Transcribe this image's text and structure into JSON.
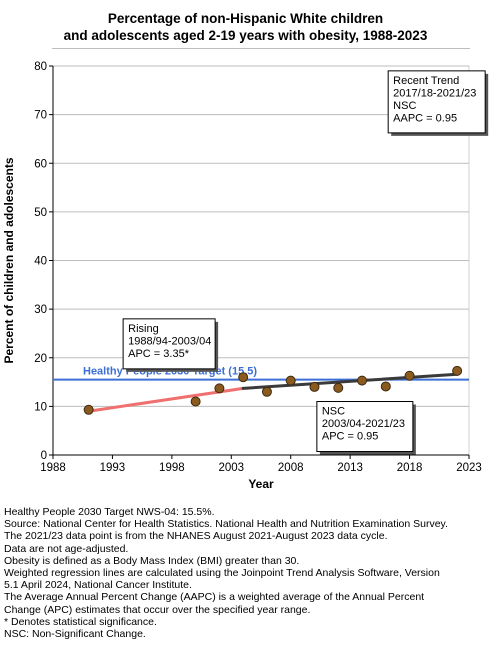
{
  "title_line1": "Percentage of non-Hispanic White children",
  "title_line2": "and adolescents aged 2-19 years with obesity, 1988-2023",
  "chart_data": {
    "type": "scatter",
    "xlabel": "Year",
    "ylabel": "Percent of children and adolescents",
    "xlim": [
      1988,
      2023
    ],
    "ylim": [
      0,
      80
    ],
    "x_ticks": [
      1988,
      1993,
      1998,
      2003,
      2008,
      2013,
      2018,
      2023
    ],
    "y_ticks": [
      0,
      10,
      20,
      30,
      40,
      50,
      60,
      70,
      80
    ],
    "grid": "horizontal",
    "points": [
      {
        "x": 1991,
        "y": 9.3
      },
      {
        "x": 2000,
        "y": 11.0
      },
      {
        "x": 2002,
        "y": 13.7
      },
      {
        "x": 2004,
        "y": 16.0
      },
      {
        "x": 2006,
        "y": 13.0
      },
      {
        "x": 2008,
        "y": 15.3
      },
      {
        "x": 2010,
        "y": 14.0
      },
      {
        "x": 2012,
        "y": 13.8
      },
      {
        "x": 2014,
        "y": 15.3
      },
      {
        "x": 2016,
        "y": 14.1
      },
      {
        "x": 2018,
        "y": 16.3
      },
      {
        "x": 2022,
        "y": 17.3
      }
    ],
    "point_color": "#8B5A1E",
    "trend_segments": [
      {
        "x": [
          1991,
          2004
        ],
        "y": [
          9.0,
          13.7
        ],
        "color": "#f07070"
      },
      {
        "x": [
          2004,
          2022
        ],
        "y": [
          13.7,
          16.6
        ],
        "color": "#3a3a3a"
      }
    ],
    "target": {
      "value": 15.5,
      "label": "Healthy People 2030 Target (15.5)",
      "color": "#3b6fd6"
    },
    "annotations": [
      {
        "lines": [
          "Rising",
          "1988/94-2003/04",
          "APC =  3.35*"
        ]
      },
      {
        "lines": [
          "NSC",
          "2003/04-2021/23",
          "APC =  0.95"
        ]
      },
      {
        "lines": [
          "Recent Trend",
          "2017/18-2021/23",
          "NSC",
          "AAPC =  0.95"
        ]
      }
    ]
  },
  "notes": [
    "Healthy People 2030 Target NWS-04: 15.5%.",
    "Source: National Center for Health Statistics. National Health and Nutrition Examination Survey.",
    "The 2021/23 data point is from the NHANES August 2021-August 2023 data cycle.",
    "Data are not age-adjusted.",
    "Obesity is defined as a Body Mass Index (BMI) greater than 30.",
    "Weighted regression lines are calculated using the Joinpoint Trend Analysis Software, Version",
    "5.1 April 2024, National Cancer Institute.",
    "The Average Annual Percent Change (AAPC) is a weighted average of the Annual Percent",
    "Change (APC) estimates that occur over the specified year range.",
    "* Denotes statistical significance.",
    "NSC: Non-Significant Change."
  ]
}
